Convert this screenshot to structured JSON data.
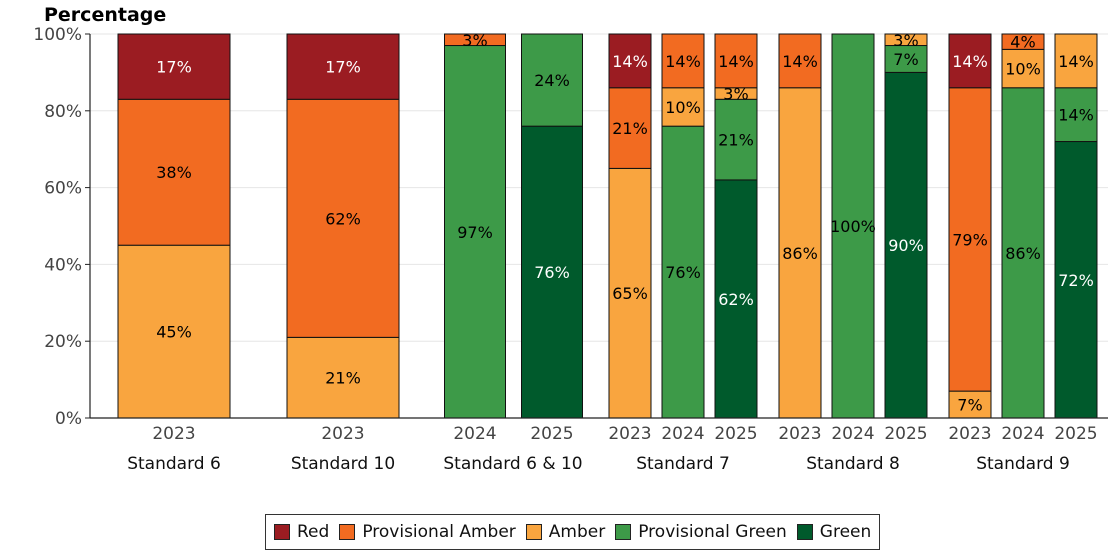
{
  "chart_data": {
    "type": "bar",
    "stacked": true,
    "ylabel": "Percentage",
    "ylim": [
      0,
      100
    ],
    "yticks": [
      "0%",
      "20%",
      "40%",
      "60%",
      "80%",
      "100%"
    ],
    "series_order": [
      "Green",
      "Provisional Green",
      "Amber",
      "Provisional Amber",
      "Red"
    ],
    "colors": {
      "Red": "#9b1c22",
      "Provisional Amber": "#f26b21",
      "Amber": "#f9a53f",
      "Provisional Green": "#3d9a48",
      "Green": "#005a2c"
    },
    "label_colors": {
      "Red": "#ffffff",
      "Provisional Amber": "#000000",
      "Amber": "#000000",
      "Provisional Green": "#000000",
      "Green": "#ffffff"
    },
    "groups": [
      {
        "name": "Standard 6",
        "bars": [
          {
            "year": "2023",
            "Amber": 45,
            "Provisional Amber": 38,
            "Red": 17
          }
        ]
      },
      {
        "name": "Standard 10",
        "bars": [
          {
            "year": "2023",
            "Amber": 21,
            "Provisional Amber": 62,
            "Red": 17
          }
        ]
      },
      {
        "name": "Standard 6 & 10",
        "bars": [
          {
            "year": "2024",
            "Provisional Green": 97,
            "Provisional Amber": 3
          },
          {
            "year": "2025",
            "Green": 76,
            "Provisional Green": 24
          }
        ]
      },
      {
        "name": "Standard 7",
        "bars": [
          {
            "year": "2023",
            "Amber": 65,
            "Provisional Amber": 21,
            "Red": 14
          },
          {
            "year": "2024",
            "Provisional Green": 76,
            "Amber": 10,
            "Provisional Amber": 14
          },
          {
            "year": "2025",
            "Green": 62,
            "Provisional Green": 21,
            "Amber": 3,
            "Provisional Amber": 14
          }
        ]
      },
      {
        "name": "Standard 8",
        "bars": [
          {
            "year": "2023",
            "Amber": 86,
            "Provisional Amber": 14
          },
          {
            "year": "2024",
            "Provisional Green": 100
          },
          {
            "year": "2025",
            "Green": 90,
            "Provisional Green": 7,
            "Amber": 3
          }
        ]
      },
      {
        "name": "Standard 9",
        "bars": [
          {
            "year": "2023",
            "Amber": 7,
            "Provisional Amber": 79,
            "Red": 14
          },
          {
            "year": "2024",
            "Provisional Green": 86,
            "Amber": 10,
            "Provisional Amber": 4
          },
          {
            "year": "2025",
            "Green": 72,
            "Provisional Green": 14,
            "Amber": 14
          }
        ]
      }
    ],
    "legend": [
      "Red",
      "Provisional Amber",
      "Amber",
      "Provisional Green",
      "Green"
    ]
  }
}
